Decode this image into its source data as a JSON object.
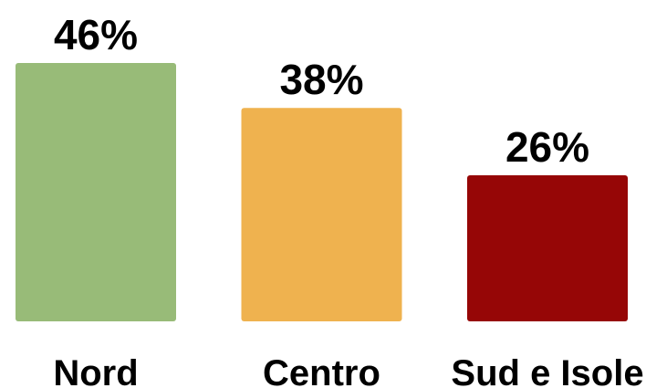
{
  "chart_data": {
    "type": "bar",
    "categories": [
      "Nord",
      "Centro",
      "Sud e Isole"
    ],
    "values": [
      46,
      38,
      26
    ],
    "value_labels": [
      "46%",
      "38%",
      "26%"
    ],
    "colors": [
      "#98bb78",
      "#efb24f",
      "#960606"
    ]
  }
}
